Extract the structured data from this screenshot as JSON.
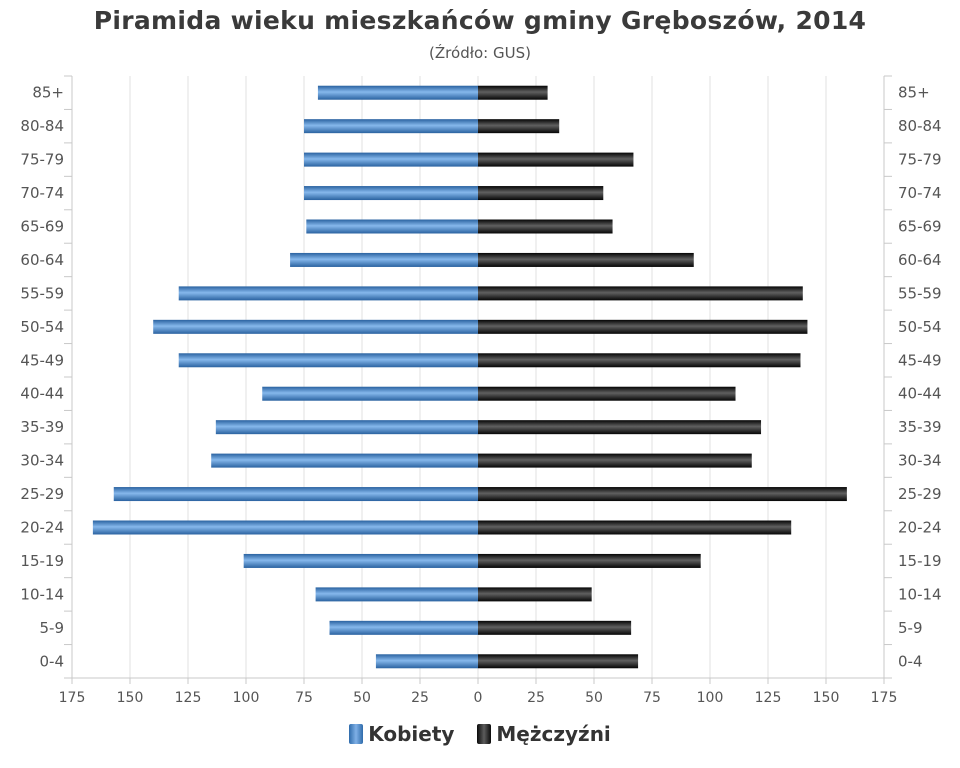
{
  "chart_data": {
    "type": "bar",
    "orientation": "horizontal",
    "title": "Piramida wieku mieszkańców gminy Gręboszów, 2014",
    "subtitle": "(Źródło: GUS)",
    "categories": [
      "85+",
      "80-84",
      "75-79",
      "70-74",
      "65-69",
      "60-64",
      "55-59",
      "50-54",
      "45-49",
      "40-44",
      "35-39",
      "30-34",
      "25-29",
      "20-24",
      "15-19",
      "10-14",
      "5-9",
      "0-4"
    ],
    "series": [
      {
        "name": "Kobiety",
        "color": "#3a7bbf",
        "values": [
          69,
          75,
          75,
          75,
          74,
          81,
          129,
          140,
          129,
          93,
          113,
          115,
          157,
          166,
          101,
          70,
          64,
          44
        ]
      },
      {
        "name": "Mężczyźni",
        "color": "#111111",
        "values": [
          30,
          35,
          67,
          54,
          58,
          93,
          140,
          142,
          139,
          111,
          122,
          118,
          159,
          135,
          96,
          49,
          66,
          69
        ]
      }
    ],
    "xlim": [
      -175,
      175
    ],
    "xticks": [
      -175,
      -150,
      -125,
      -100,
      -75,
      -50,
      -25,
      0,
      25,
      50,
      75,
      100,
      125,
      150,
      175
    ],
    "xtick_labels": [
      "175",
      "150",
      "125",
      "100",
      "75",
      "50",
      "25",
      "0",
      "25",
      "50",
      "75",
      "100",
      "125",
      "150",
      "175"
    ],
    "grid": true,
    "legend_position": "bottom"
  }
}
